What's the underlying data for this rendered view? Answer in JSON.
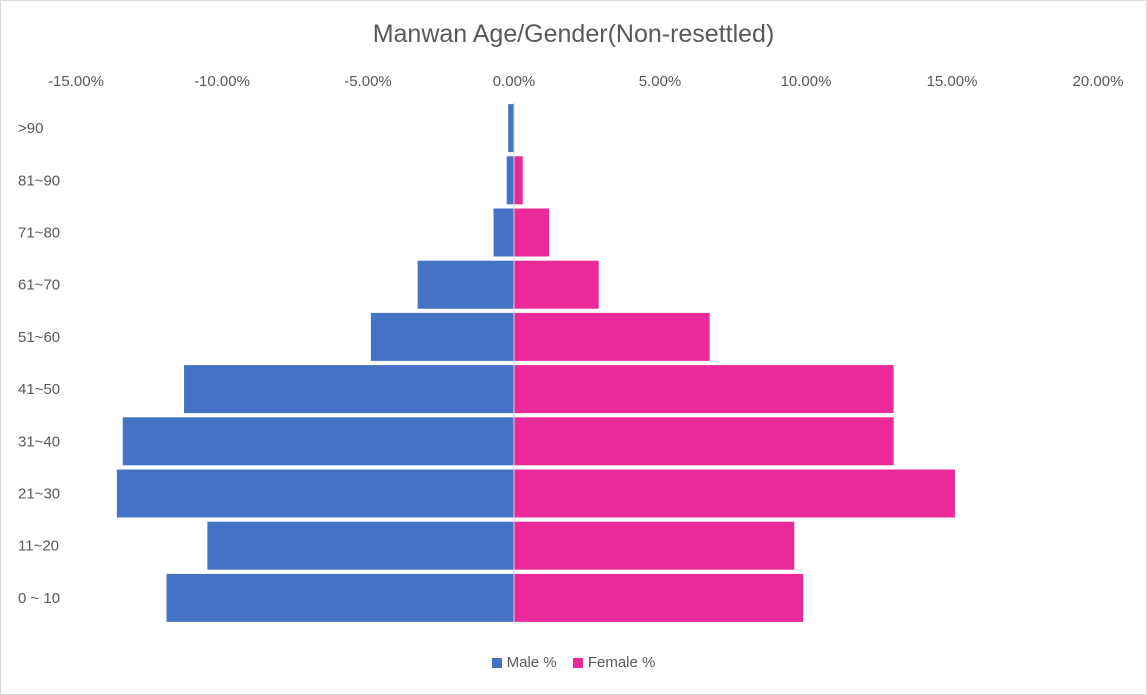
{
  "chart_data": {
    "type": "bar",
    "orientation": "horizontal-pyramid",
    "title": "Manwan Age/Gender(Non-resettled)",
    "categories": [
      ">90",
      "81~90",
      "71~80",
      "61~70",
      "51~60",
      "41~50",
      "31~40",
      "21~30",
      "11~20",
      "0 ~ 10"
    ],
    "series": [
      {
        "name": "Male %",
        "color": "#4472c4",
        "values": [
          -0.2,
          -0.25,
          -0.7,
          -3.3,
          -4.9,
          -11.3,
          -13.4,
          -13.6,
          -10.5,
          -11.9
        ]
      },
      {
        "name": "Female %",
        "color": "#ea2a99",
        "values": [
          0.0,
          0.3,
          1.2,
          2.9,
          6.7,
          13.0,
          13.0,
          15.1,
          9.6,
          9.9
        ]
      }
    ],
    "xlim": [
      -15,
      20
    ],
    "xticks": [
      -15,
      -10,
      -5,
      0,
      5,
      10,
      15,
      20
    ],
    "xtick_labels": [
      "-15.00%",
      "-10.00%",
      "-5.00%",
      "0.00%",
      "5.00%",
      "10.00%",
      "15.00%",
      "20.00%"
    ],
    "x_axis_position": "top",
    "grid": false,
    "legend_position": "bottom"
  }
}
